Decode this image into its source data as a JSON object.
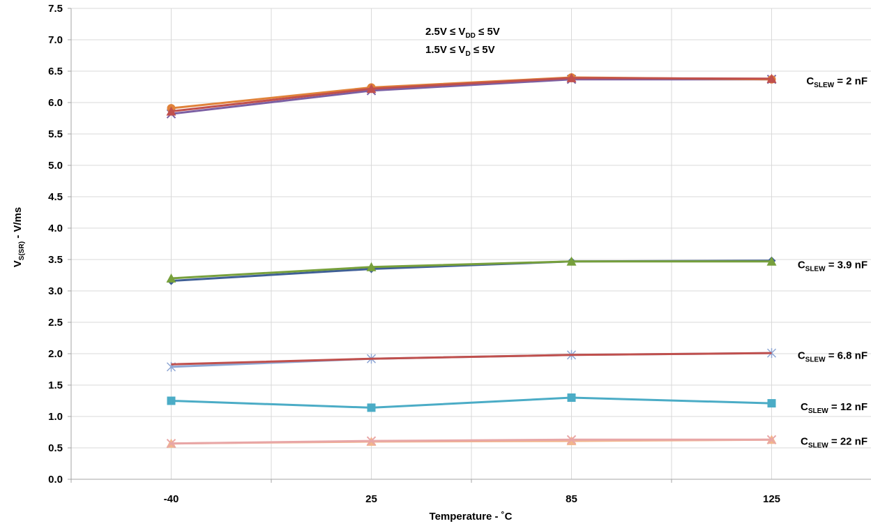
{
  "chart_data": {
    "type": "line",
    "xlabel": "Temperature - ˚C",
    "ylabel": {
      "main": "V",
      "sub": "S(SR)",
      "rest": " - V/ms"
    },
    "categories": [
      "-40",
      "25",
      "85",
      "125"
    ],
    "x": [
      -40,
      25,
      85,
      125
    ],
    "ylim": [
      0,
      7.5
    ],
    "yticks": [
      "0.0",
      "0.5",
      "1.0",
      "1.5",
      "2.0",
      "2.5",
      "3.0",
      "3.5",
      "4.0",
      "4.5",
      "5.0",
      "5.5",
      "6.0",
      "6.5",
      "7.0",
      "7.5"
    ],
    "grid": true,
    "conditions": [
      {
        "pre": "2.5V ≤ V",
        "sub": "DD",
        "post": " ≤ 5V"
      },
      {
        "pre": "1.5V ≤ V",
        "sub": "D",
        "post": " ≤ 5V"
      }
    ],
    "series": [
      {
        "group": "2 nF",
        "marker": "x",
        "color": "#7b5fa3",
        "values": [
          5.82,
          6.19,
          6.37,
          6.37
        ]
      },
      {
        "group": "2 nF",
        "marker": "circle",
        "color": "#e0823a",
        "values": [
          5.91,
          6.24,
          6.4,
          6.37
        ]
      },
      {
        "group": "2 nF",
        "marker": "triangle",
        "color": "#c0504d",
        "values": [
          5.86,
          6.22,
          6.39,
          6.38
        ]
      },
      {
        "group": "3.9 nF",
        "marker": "diamond",
        "color": "#3f5f96",
        "values": [
          3.16,
          3.35,
          3.47,
          3.48
        ]
      },
      {
        "group": "3.9 nF",
        "marker": "triangle",
        "color": "#77a03c",
        "values": [
          3.2,
          3.38,
          3.47,
          3.47
        ]
      },
      {
        "group": "6.8 nF",
        "marker": "star",
        "color": "#8ea6d4",
        "values": [
          1.79,
          1.92,
          1.98,
          2.01
        ]
      },
      {
        "group": "6.8 nF",
        "marker": "none",
        "color": "#c0504d",
        "values": [
          1.83,
          1.92,
          1.98,
          2.01
        ]
      },
      {
        "group": "12 nF",
        "marker": "square",
        "color": "#4bacc6",
        "values": [
          1.25,
          1.14,
          1.3,
          1.21
        ]
      },
      {
        "group": "22 nF",
        "marker": "triangle",
        "color": "#f2b58c",
        "values": [
          0.57,
          0.6,
          0.61,
          0.63
        ]
      },
      {
        "group": "22 nF",
        "marker": "x",
        "color": "#e8a6a6",
        "values": [
          0.57,
          0.61,
          0.63,
          0.63
        ]
      }
    ],
    "labels": [
      {
        "pre": "C",
        "sub": "SLEW",
        "post": " = 2 nF",
        "at": 6.4
      },
      {
        "pre": "C",
        "sub": "SLEW",
        "post": " = 3.9 nF",
        "at": 3.47
      },
      {
        "pre": "C",
        "sub": "SLEW",
        "post": " = 6.8 nF",
        "at": 2.03
      },
      {
        "pre": "C",
        "sub": "SLEW",
        "post": " = 12 nF",
        "at": 1.21
      },
      {
        "pre": "C",
        "sub": "SLEW",
        "post": " = 22 nF",
        "at": 0.66
      }
    ]
  }
}
